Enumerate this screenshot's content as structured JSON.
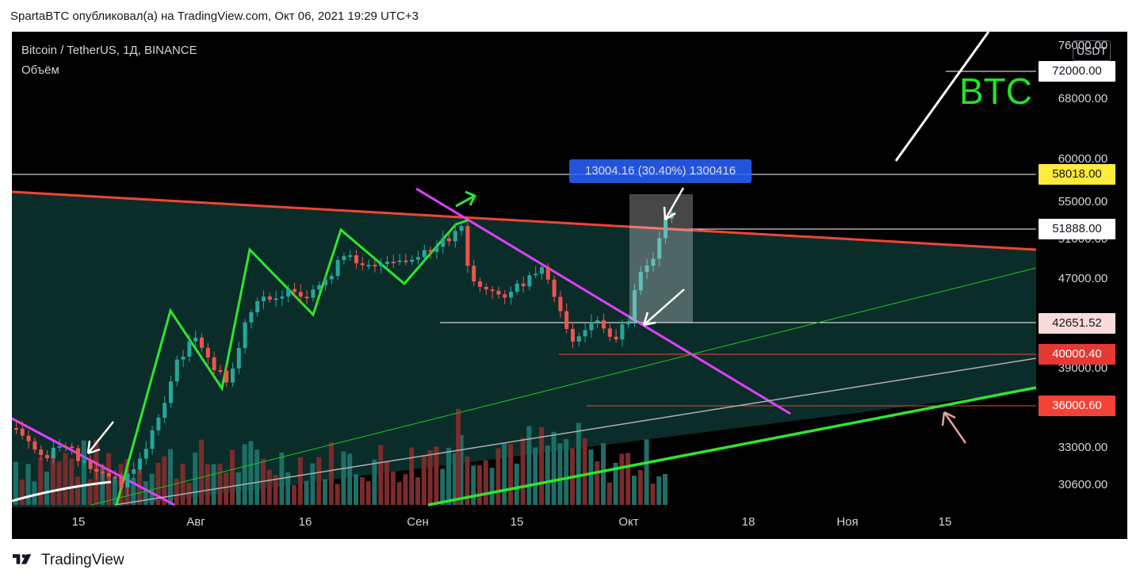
{
  "header": {
    "published_line": "SpartaBTC опубликовал(а) на TradingView.com, Окт 06, 2021 19:29 UTC+3"
  },
  "chart": {
    "ticker": "Bitcoin / TetherUS, 1Д, BINANCE",
    "volume_label": "Объём",
    "currency_button": "USDT",
    "watermark": "BTC",
    "price_axis_labels": [
      "76000.00",
      "68000.00",
      "60000.00",
      "55000.00",
      "51000.00",
      "47000.00",
      "39000.00",
      "33000.00",
      "30600.00"
    ],
    "price_badges": [
      {
        "label": "72000.00",
        "bg": "#ffffff",
        "fg": "#131722"
      },
      {
        "label": "58018.00",
        "bg": "#ffeb3b",
        "fg": "#131722"
      },
      {
        "label": "51888.00",
        "bg": "#ffffff",
        "fg": "#131722"
      },
      {
        "label": "42651.52",
        "bg": "#fadbd8",
        "fg": "#131722"
      },
      {
        "label": "40000.40",
        "bg": "#e53935",
        "fg": "#ffffff"
      },
      {
        "label": "36000.60",
        "bg": "#f44336",
        "fg": "#ffffff"
      }
    ],
    "time_axis_labels": [
      "15",
      "Авг",
      "16",
      "Сен",
      "15",
      "Окт",
      "18",
      "Ноя",
      "15"
    ],
    "measure_label": "13004.16 (30.40%) 1300416",
    "colors": {
      "up": "#26a69a",
      "down": "#ef5350",
      "triangle_fill": "#0b2d2a",
      "resistance": "#f44336",
      "pink_trend": "#e040fb",
      "green_support": "#2ee52e",
      "wave": "#2ee52e"
    }
  },
  "footer": {
    "brand": "TradingView"
  }
}
